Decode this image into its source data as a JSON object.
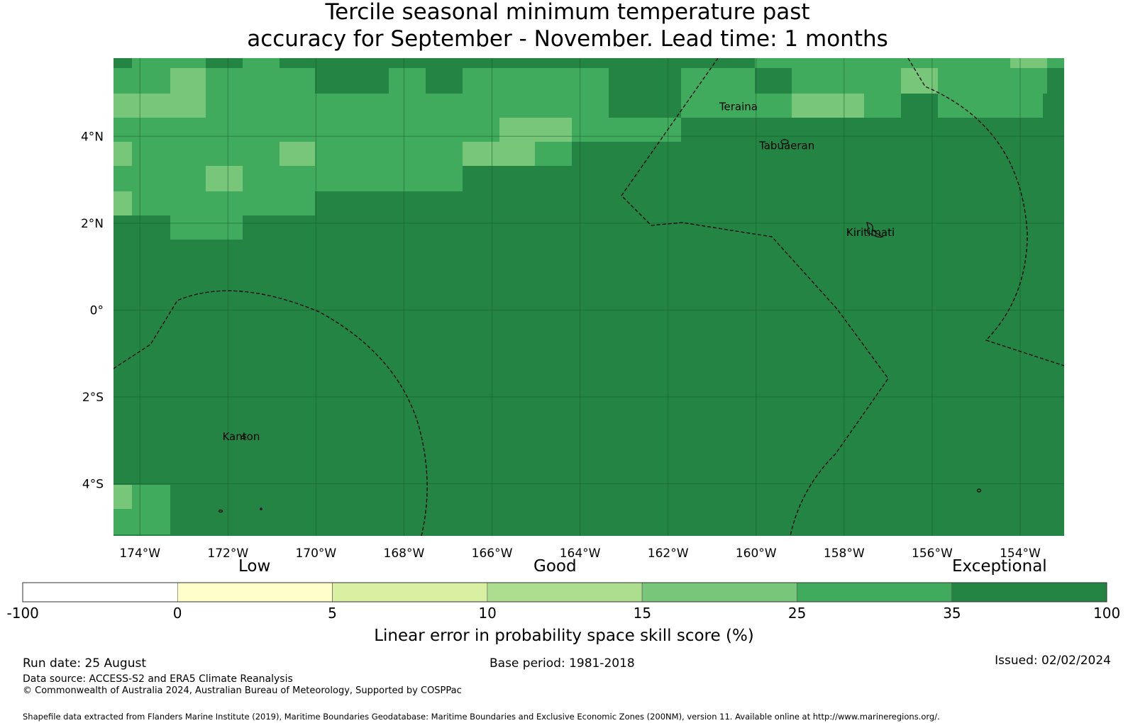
{
  "title_line1": "Tercile seasonal minimum temperature past",
  "title_line2": "accuracy for September - November. Lead time: 1 months",
  "map": {
    "lon_range": [
      -174.6,
      -153.0
    ],
    "lat_range": [
      -5.2,
      5.8
    ],
    "lat_ticks": [
      {
        "value": 4,
        "label": "4°N"
      },
      {
        "value": 2,
        "label": "2°N"
      },
      {
        "value": 0,
        "label": "0°"
      },
      {
        "value": -2,
        "label": "2°S"
      },
      {
        "value": -4,
        "label": "4°S"
      }
    ],
    "lon_ticks": [
      {
        "value": -174,
        "label": "174°W"
      },
      {
        "value": -172,
        "label": "172°W"
      },
      {
        "value": -170,
        "label": "170°W"
      },
      {
        "value": -168,
        "label": "168°W"
      },
      {
        "value": -166,
        "label": "166°W"
      },
      {
        "value": -164,
        "label": "164°W"
      },
      {
        "value": -162,
        "label": "162°W"
      },
      {
        "value": -160,
        "label": "160°W"
      },
      {
        "value": -158,
        "label": "158°W"
      },
      {
        "value": -156,
        "label": "156°W"
      },
      {
        "value": -154,
        "label": "154°W"
      }
    ],
    "background_skill_class": "35-100",
    "places": [
      {
        "name": "Teraina",
        "lon": -160.4,
        "lat": 4.6
      },
      {
        "name": "Tabuaeran",
        "lon": -159.3,
        "lat": 3.7
      },
      {
        "name": "Kiritimati",
        "lon": -157.4,
        "lat": 1.7
      },
      {
        "name": "Kanton",
        "lon": -171.7,
        "lat": -3.0
      }
    ]
  },
  "colorbar": {
    "category_labels": [
      "Low",
      "Good",
      "Exceptional"
    ],
    "bounds": [
      "-100",
      "0",
      "5",
      "10",
      "15",
      "25",
      "35",
      "100"
    ],
    "colors": [
      "#ffffff",
      "#ffffcc",
      "#d9f0a3",
      "#addd8e",
      "#78c679",
      "#41ab5d",
      "#238443"
    ],
    "label": "Linear error in probability space skill score (%)"
  },
  "footer": {
    "run_date": "Run date: 25 August",
    "base_period": "Base period: 1981-2018",
    "issued": "Issued: 02/02/2024",
    "data_source": "Data source: ACCESS-S2 and ERA5 Climate Reanalysis",
    "copyright": "© Commonwealth of Australia 2024, Australian Bureau of Meteorology, Supported by COSPPac",
    "shapefile": "Shapefile data extracted from Flanders Marine Institute (2019), Maritime Boundaries Geodatabase: Maritime Boundaries and Exclusive Economic Zones (200NM), version 11. Available online at http://www.marineregions.org/."
  }
}
